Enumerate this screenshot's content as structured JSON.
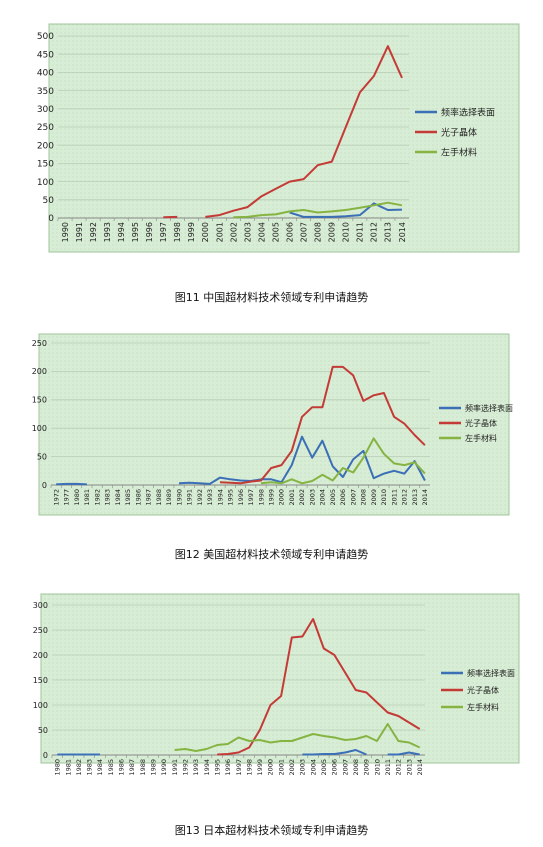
{
  "figures": [
    {
      "caption": "图11 中国超材料技术领域专利申请趋势",
      "chart_data": {
        "type": "line",
        "x": [
          "1990",
          "1991",
          "1992",
          "1993",
          "1994",
          "1995",
          "1996",
          "1997",
          "1998",
          "1999",
          "2000",
          "2001",
          "2002",
          "2003",
          "2004",
          "2005",
          "2006",
          "2007",
          "2008",
          "2009",
          "2010",
          "2011",
          "2012",
          "2013",
          "2014"
        ],
        "ylim": [
          0,
          500
        ],
        "yticks": [
          0,
          50,
          100,
          150,
          200,
          250,
          300,
          350,
          400,
          450,
          500
        ],
        "grid": true,
        "legend_position": "right",
        "series": [
          {
            "name": "频率选择表面",
            "color": "#3b6fb6",
            "values": [
              null,
              null,
              null,
              null,
              null,
              null,
              null,
              null,
              null,
              null,
              null,
              null,
              null,
              null,
              null,
              null,
              15,
              3,
              3,
              3,
              5,
              8,
              40,
              22,
              23
            ]
          },
          {
            "name": "光子晶体",
            "color": "#c43a36",
            "values": [
              null,
              null,
              null,
              null,
              null,
              null,
              null,
              2,
              3,
              null,
              3,
              8,
              20,
              30,
              60,
              80,
              100,
              107,
              145,
              155,
              250,
              345,
              390,
              472,
              385
            ]
          },
          {
            "name": "左手材料",
            "color": "#86b443",
            "values": [
              null,
              null,
              null,
              null,
              null,
              null,
              null,
              null,
              null,
              null,
              null,
              null,
              2,
              3,
              8,
              10,
              18,
              22,
              15,
              18,
              22,
              28,
              35,
              42,
              35
            ]
          }
        ]
      }
    },
    {
      "caption": "图12 美国超材料技术领域专利申请趋势",
      "chart_data": {
        "type": "line",
        "x": [
          "1972",
          "1977",
          "1980",
          "1981",
          "1982",
          "1983",
          "1984",
          "1985",
          "1986",
          "1987",
          "1988",
          "1989",
          "1990",
          "1991",
          "1992",
          "1993",
          "1994",
          "1995",
          "1996",
          "1997",
          "1998",
          "1999",
          "2000",
          "2001",
          "2002",
          "2003",
          "2004",
          "2005",
          "2006",
          "2007",
          "2008",
          "2009",
          "2010",
          "2011",
          "2012",
          "2013",
          "2014"
        ],
        "ylim": [
          0,
          250
        ],
        "yticks": [
          0,
          50,
          100,
          150,
          200,
          250
        ],
        "grid": true,
        "legend_position": "right",
        "series": [
          {
            "name": "频率选择表面",
            "color": "#3b6fb6",
            "values": [
              1,
              2,
              2,
              1,
              null,
              null,
              null,
              null,
              null,
              null,
              null,
              null,
              3,
              4,
              3,
              2,
              13,
              10,
              8,
              7,
              10,
              10,
              5,
              35,
              85,
              48,
              78,
              33,
              14,
              45,
              60,
              12,
              20,
              25,
              20,
              42,
              8
            ]
          },
          {
            "name": "光子晶体",
            "color": "#c43a36",
            "values": [
              null,
              null,
              null,
              null,
              null,
              null,
              null,
              null,
              null,
              null,
              null,
              null,
              null,
              null,
              null,
              null,
              5,
              4,
              3,
              6,
              8,
              30,
              35,
              60,
              120,
              137,
              137,
              208,
              208,
              193,
              148,
              158,
              162,
              120,
              108,
              88,
              70
            ]
          },
          {
            "name": "左手材料",
            "color": "#86b443",
            "values": [
              null,
              null,
              null,
              null,
              null,
              null,
              null,
              null,
              null,
              null,
              null,
              null,
              null,
              null,
              null,
              null,
              null,
              null,
              null,
              null,
              3,
              5,
              3,
              10,
              3,
              7,
              18,
              8,
              30,
              22,
              48,
              82,
              55,
              38,
              35,
              40,
              20
            ]
          }
        ]
      }
    },
    {
      "caption": "图13 日本超材料技术领域专利申请趋势",
      "chart_data": {
        "type": "line",
        "x": [
          "1980",
          "1981",
          "1982",
          "1983",
          "1984",
          "1985",
          "1986",
          "1987",
          "1988",
          "1989",
          "1990",
          "1991",
          "1992",
          "1993",
          "1994",
          "1995",
          "1996",
          "1997",
          "1998",
          "1999",
          "2000",
          "2001",
          "2002",
          "2003",
          "2004",
          "2005",
          "2006",
          "2007",
          "2008",
          "2009",
          "2010",
          "2011",
          "2012",
          "2013",
          "2014"
        ],
        "ylim": [
          0,
          300
        ],
        "yticks": [
          0,
          50,
          100,
          150,
          200,
          250,
          300
        ],
        "grid": true,
        "legend_position": "right",
        "series": [
          {
            "name": "频率选择表面",
            "color": "#3b6fb6",
            "values": [
              1,
              1,
              1,
              1,
              1,
              null,
              null,
              null,
              null,
              null,
              null,
              null,
              null,
              null,
              null,
              null,
              null,
              null,
              null,
              null,
              null,
              null,
              null,
              1,
              1,
              2,
              2,
              5,
              10,
              1,
              null,
              1,
              1,
              5,
              1
            ]
          },
          {
            "name": "光子晶体",
            "color": "#c43a36",
            "values": [
              null,
              null,
              null,
              null,
              null,
              null,
              null,
              null,
              null,
              null,
              null,
              null,
              null,
              null,
              null,
              1,
              2,
              5,
              15,
              50,
              100,
              118,
              235,
              237,
              272,
              213,
              200,
              165,
              130,
              125,
              105,
              85,
              78,
              65,
              52
            ]
          },
          {
            "name": "左手材料",
            "color": "#86b443",
            "values": [
              null,
              null,
              null,
              null,
              null,
              null,
              null,
              null,
              null,
              null,
              null,
              10,
              12,
              8,
              12,
              20,
              22,
              35,
              28,
              30,
              25,
              28,
              28,
              35,
              42,
              38,
              35,
              30,
              32,
              38,
              28,
              62,
              28,
              25,
              15
            ]
          }
        ]
      }
    }
  ]
}
